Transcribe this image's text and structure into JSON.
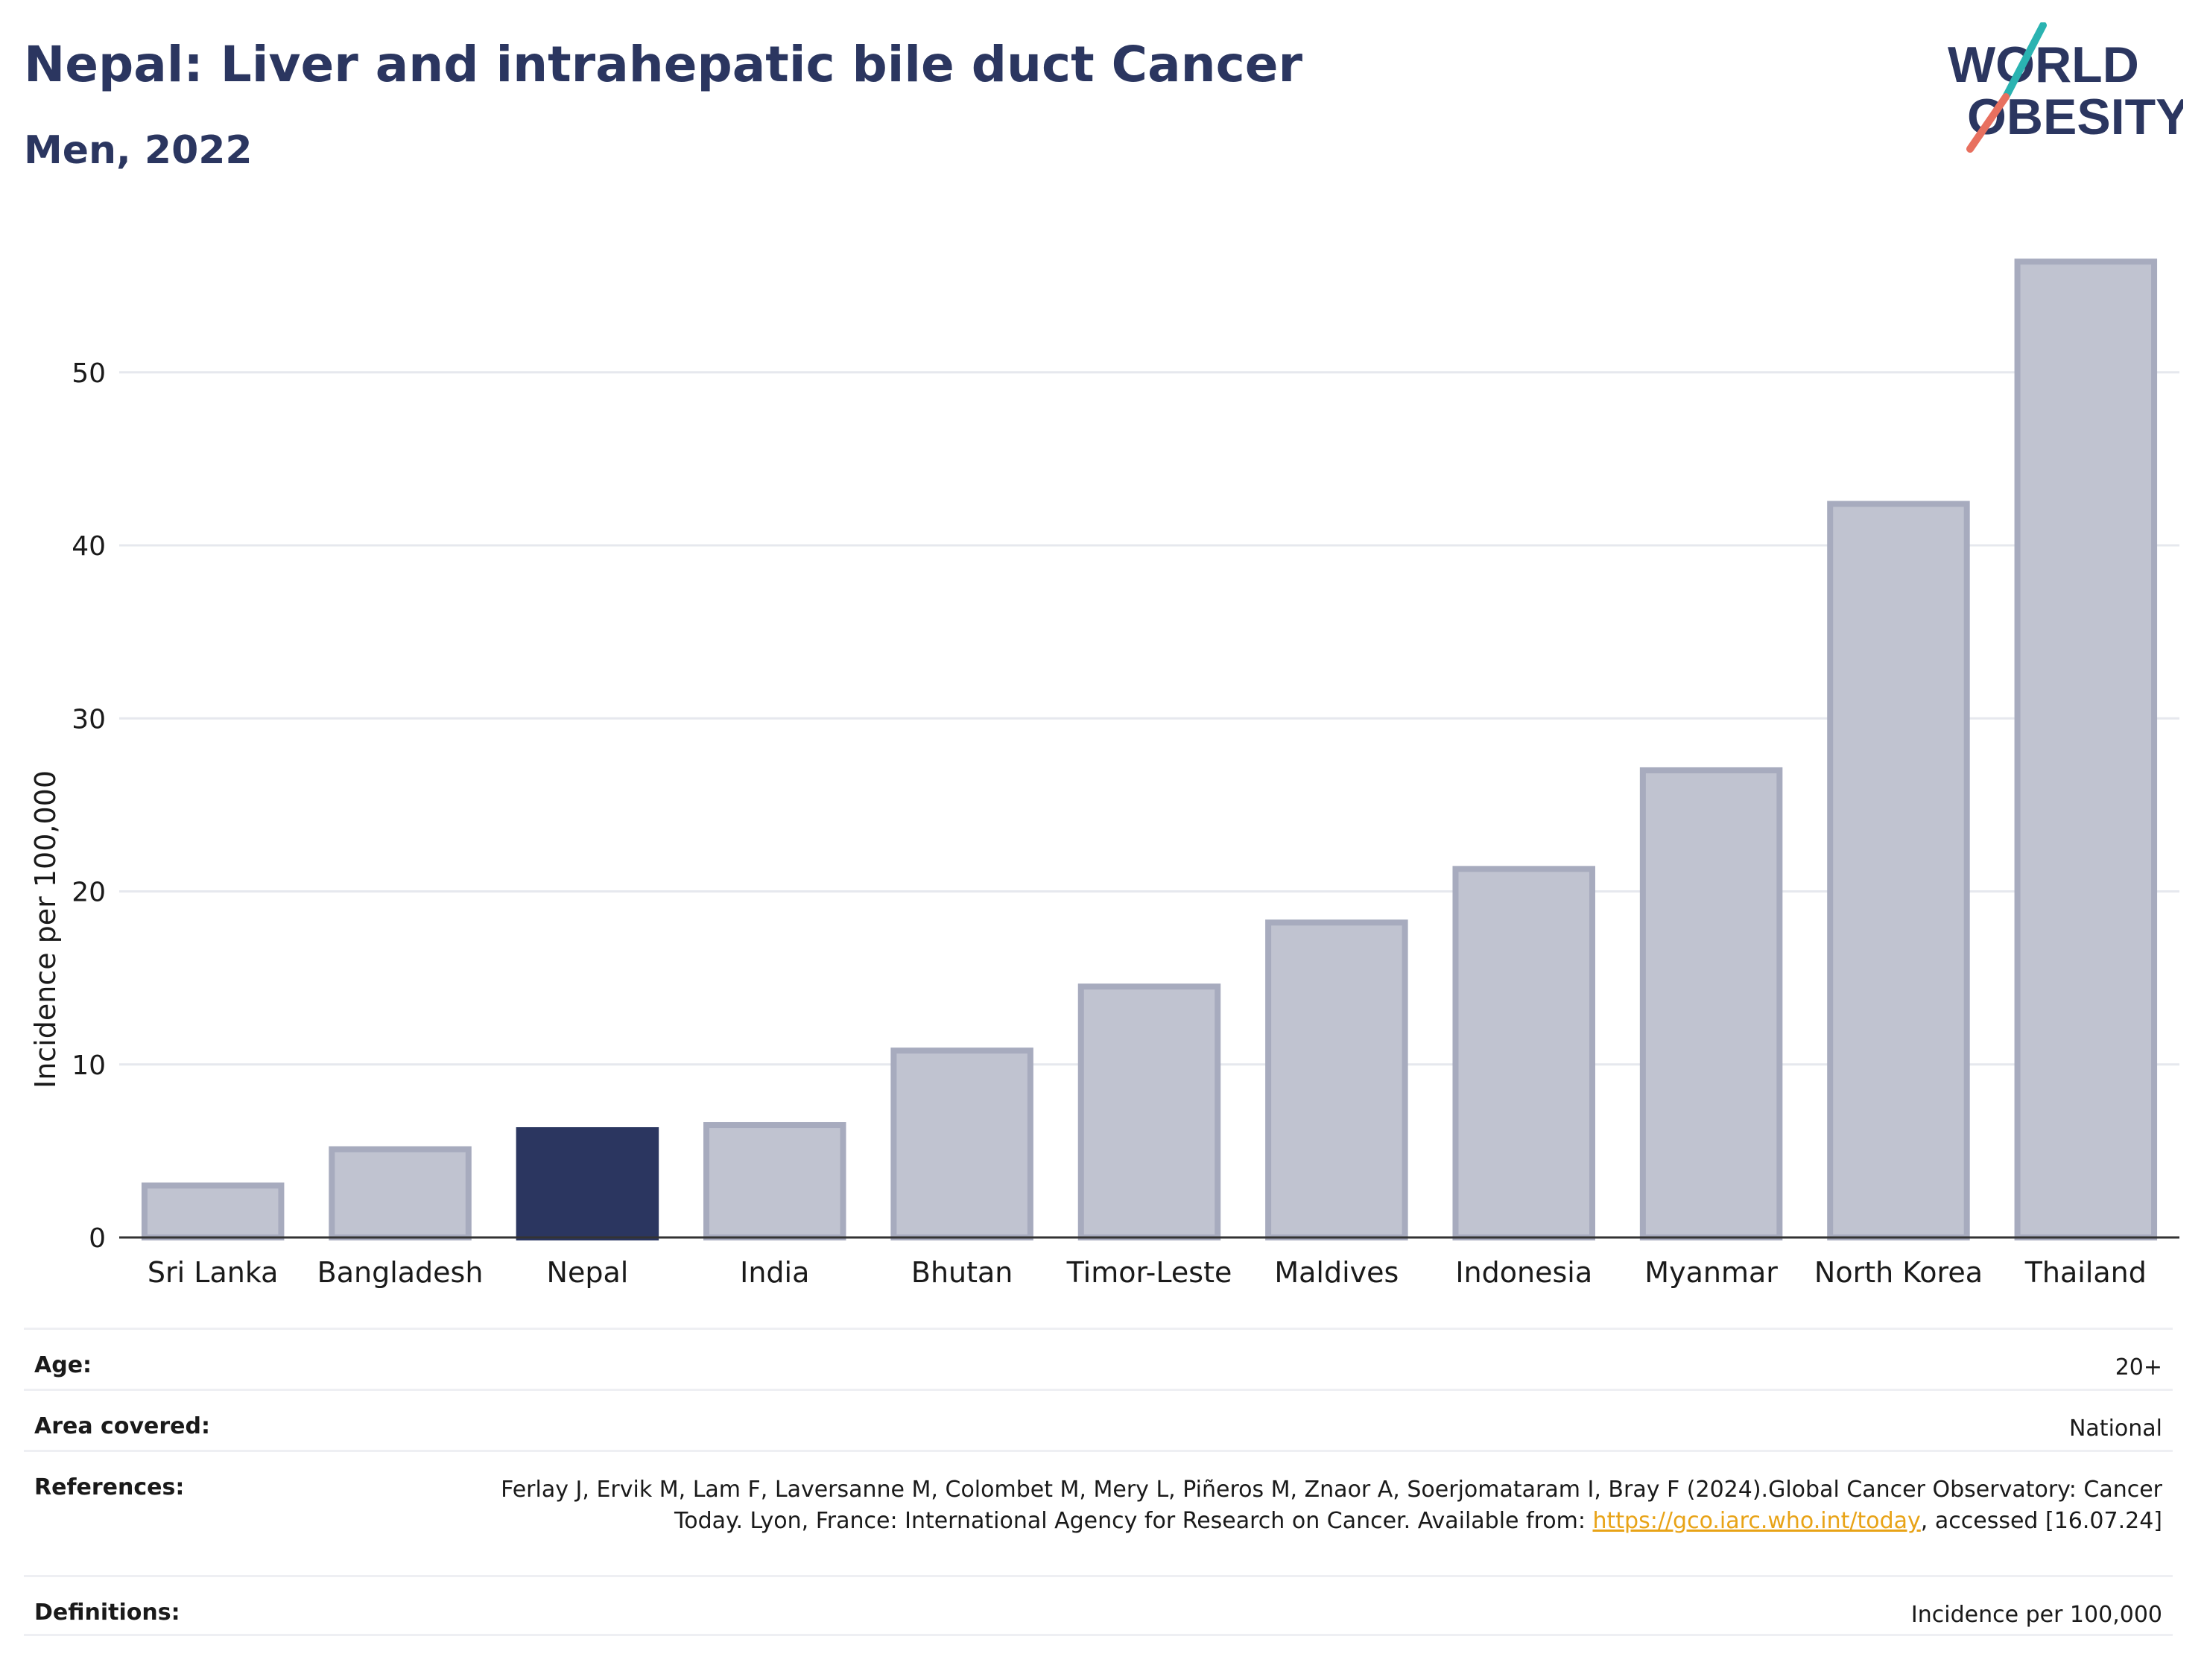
{
  "header": {
    "title": "Nepal: Liver and intrahepatic bile duct Cancer",
    "subtitle": "Men, 2022"
  },
  "logo": {
    "line1": "WORLD",
    "line2": "OBESITY",
    "colors": {
      "text": "#2b3660",
      "slash_teal": "#2ab3b1",
      "slash_coral": "#e8705f"
    }
  },
  "chart_data": {
    "type": "bar",
    "categories": [
      "Sri Lanka",
      "Bangladesh",
      "Nepal",
      "India",
      "Bhutan",
      "Timor-Leste",
      "Maldives",
      "Indonesia",
      "Myanmar",
      "North Korea",
      "Thailand"
    ],
    "values": [
      3.0,
      5.1,
      6.2,
      6.5,
      10.8,
      14.5,
      18.2,
      21.3,
      27.0,
      42.4,
      56.4
    ],
    "highlight": "Nepal",
    "ylabel": "Incidence per 100,000",
    "xlabel": "",
    "ylim": [
      0,
      58
    ],
    "yticks": [
      0,
      10,
      20,
      30,
      40,
      50
    ],
    "grid": true,
    "colors": {
      "highlight": "#2b3660",
      "bar": "#c0c3d0",
      "bar_border": "#a7abbe"
    }
  },
  "meta": {
    "age": {
      "label": "Age:",
      "value": "20+"
    },
    "area": {
      "label": "Area covered:",
      "value": "National"
    },
    "references": {
      "label": "References:",
      "text_before": "Ferlay J, Ervik M, Lam F, Laversanne M, Colombet M, Mery L, Piñeros M, Znaor A, Soerjomataram I, Bray F (2024).Global Cancer Observatory: Cancer Today. Lyon, France: International Agency for Research on Cancer. Available from: ",
      "link": "https://gco.iarc.who.int/today",
      "text_after": ", accessed [16.07.24]"
    },
    "definitions": {
      "label": "Definitions:",
      "value": "Incidence per 100,000"
    }
  }
}
